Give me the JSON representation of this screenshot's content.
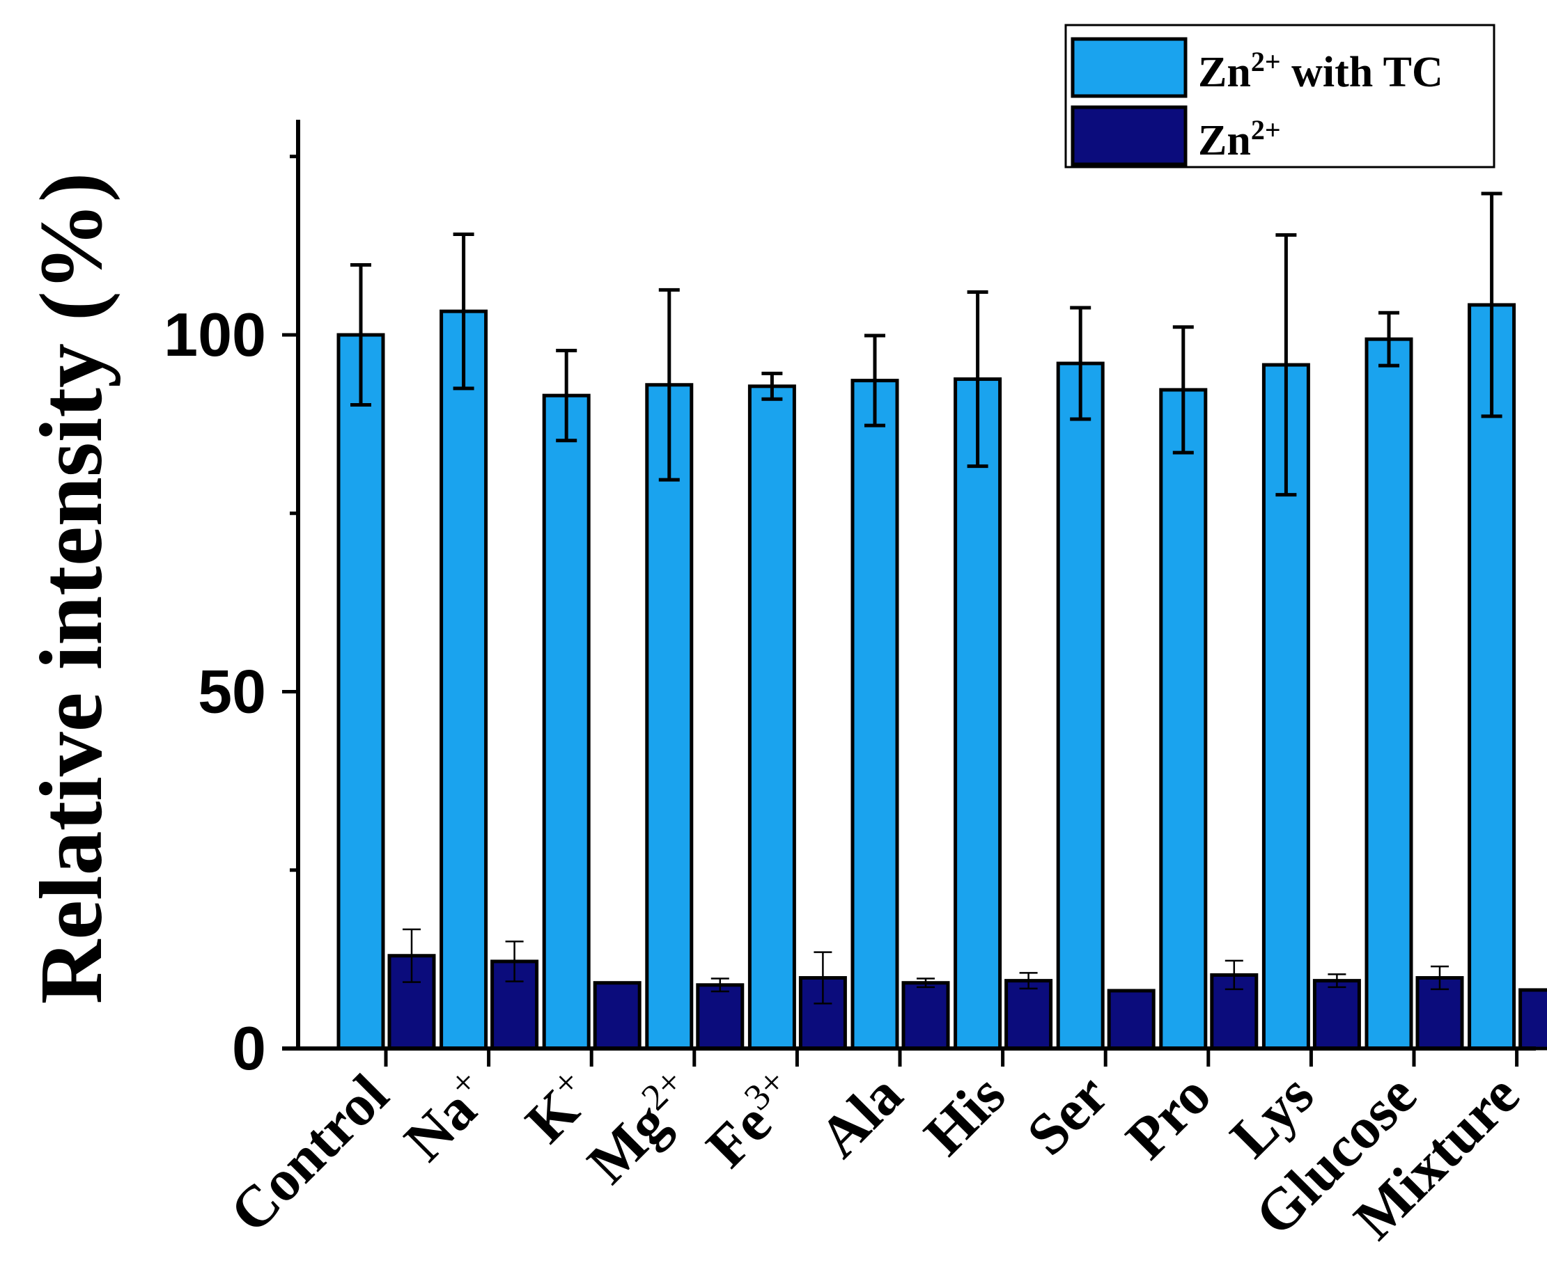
{
  "chart_data": {
    "type": "bar",
    "title": "",
    "xlabel": "",
    "ylabel": "Relative intensity (%)",
    "ylim": [
      0,
      130
    ],
    "yticks": [
      0,
      50,
      100
    ],
    "yticks_minor": [
      25,
      75,
      125
    ],
    "categories": [
      {
        "base": "Control",
        "sup": ""
      },
      {
        "base": "Na",
        "sup": "+"
      },
      {
        "base": "K",
        "sup": "+"
      },
      {
        "base": "Mg",
        "sup": "2+"
      },
      {
        "base": "Fe",
        "sup": "3+"
      },
      {
        "base": "Ala",
        "sup": ""
      },
      {
        "base": "His",
        "sup": ""
      },
      {
        "base": "Ser",
        "sup": ""
      },
      {
        "base": "Pro",
        "sup": ""
      },
      {
        "base": "Lys",
        "sup": ""
      },
      {
        "base": "Glucose",
        "sup": ""
      },
      {
        "base": "Mixture",
        "sup": ""
      }
    ],
    "series": [
      {
        "name_base": "Zn",
        "name_sup": "2+",
        "name_suffix": " with TC",
        "color": "#1aa3ee",
        "values": [
          100,
          103.3,
          91.5,
          93,
          92.8,
          93.6,
          93.8,
          96,
          92.3,
          95.8,
          99.4,
          104.2
        ],
        "errors": [
          9.8,
          10.8,
          6.3,
          13.3,
          1.8,
          6.3,
          12.2,
          7.8,
          8.8,
          18.2,
          3.7,
          15.6
        ]
      },
      {
        "name_base": "Zn",
        "name_sup": "2+",
        "name_suffix": "",
        "color": "#0b0c7c",
        "values": [
          13,
          12.2,
          9.2,
          8.9,
          9.9,
          9.2,
          9.5,
          8.1,
          10.3,
          9.5,
          9.9,
          8.2
        ],
        "errors": [
          3.7,
          2.8,
          0,
          0.9,
          3.6,
          0.6,
          1.1,
          0,
          2.0,
          0.9,
          1.6,
          0
        ]
      }
    ],
    "legend_position": "top-right"
  }
}
